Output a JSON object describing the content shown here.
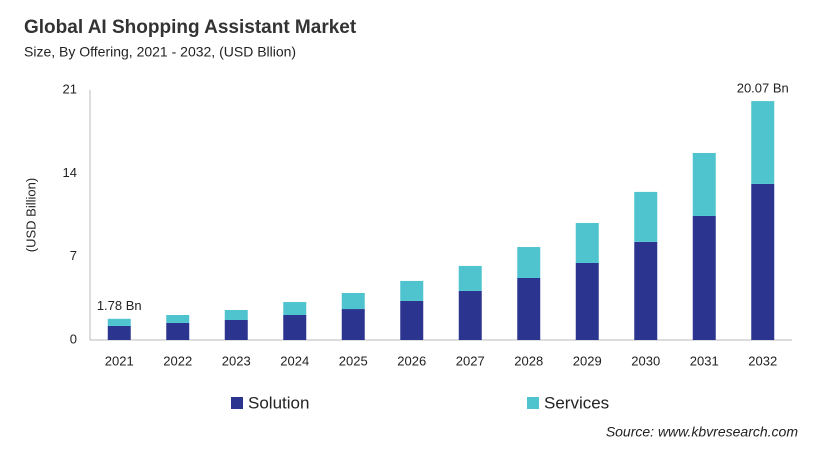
{
  "chart_data": {
    "type": "stacked_bar",
    "title": "Global AI Shopping Assistant Market",
    "subtitle": "Size, By Offering, 2021 - 2032, (USD Bllion)",
    "y_label": "(USD Billion)",
    "source": "Source: www.kbvresearch.com",
    "categories": [
      "2021",
      "2022",
      "2023",
      "2024",
      "2025",
      "2026",
      "2027",
      "2028",
      "2029",
      "2030",
      "2031",
      "2032"
    ],
    "series": [
      {
        "name": "Solution",
        "color": "#2b358f",
        "values": [
          1.18,
          1.43,
          1.68,
          2.1,
          2.6,
          3.28,
          4.12,
          5.21,
          6.47,
          8.24,
          10.42,
          13.11
        ]
      },
      {
        "name": "Services",
        "color": "#4fc4cf",
        "values": [
          0.6,
          0.67,
          0.84,
          1.09,
          1.35,
          1.68,
          2.1,
          2.6,
          3.36,
          4.2,
          5.29,
          6.96
        ]
      }
    ],
    "annotations": [
      {
        "category": "2021",
        "value": 1.78,
        "label": "1.78 Bn"
      },
      {
        "category": "2032",
        "value": 20.07,
        "label": "20.07 Bn"
      }
    ],
    "ylim": [
      0,
      21
    ],
    "yticks": [
      0,
      7,
      14,
      21
    ],
    "grid": false
  }
}
